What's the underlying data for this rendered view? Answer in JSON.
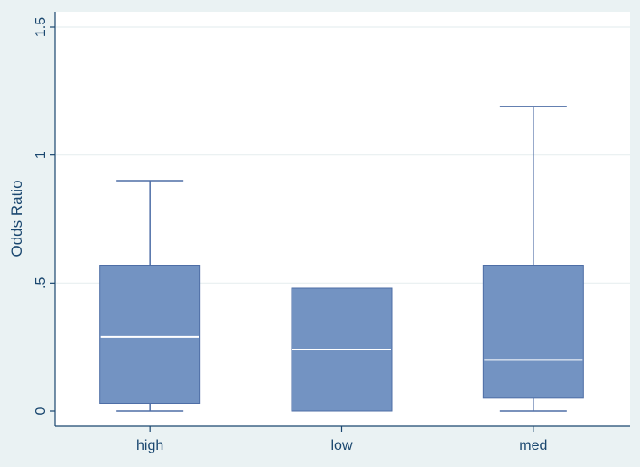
{
  "chart_data": {
    "type": "box",
    "ylabel": "Odds Ratio",
    "xlabel": "",
    "ylim": [
      0,
      1.5
    ],
    "yticks": [
      0,
      0.5,
      1,
      1.5
    ],
    "ytick_labels": [
      "0",
      ".5",
      "1",
      "1.5"
    ],
    "categories": [
      "high",
      "low",
      "med"
    ],
    "boxes": [
      {
        "category": "high",
        "min": 0.0,
        "q1": 0.03,
        "median": 0.29,
        "q3": 0.57,
        "max": 0.9
      },
      {
        "category": "low",
        "min": 0.0,
        "q1": 0.0,
        "median": 0.24,
        "q3": 0.48,
        "max": 0.48
      },
      {
        "category": "med",
        "min": 0.0,
        "q1": 0.05,
        "median": 0.2,
        "q3": 0.57,
        "max": 1.19
      }
    ],
    "grid": true,
    "colors": {
      "background": "#eaf2f3",
      "plot_area": "#ffffff",
      "box_fill": "#7393c2",
      "box_line": "#4e6ea6",
      "median": "#ffffff",
      "axis": "#1a476f",
      "grid": "#e8eff0"
    }
  }
}
